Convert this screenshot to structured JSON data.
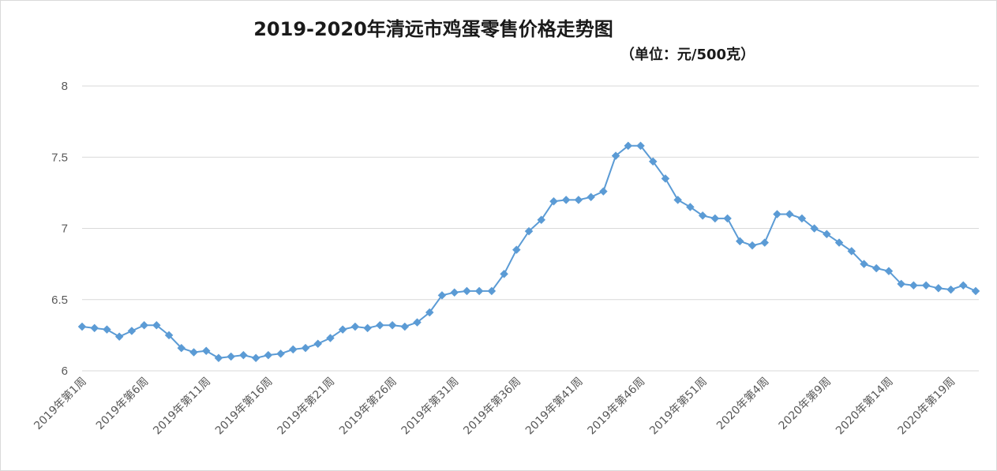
{
  "chart_data": {
    "type": "line",
    "title": "2019-2020年清远市鸡蛋零售价格走势图",
    "subtitle": "（单位：元/500克）",
    "xlabel": "",
    "ylabel": "",
    "ylim": [
      6,
      8
    ],
    "yticks": [
      "6",
      "6.5",
      "7",
      "7.5",
      "8"
    ],
    "grid": true,
    "legend": "none",
    "colors": {
      "series": "#5b9bd5",
      "grid": "#d9d9d9",
      "text": "#595959"
    },
    "x": [
      "2019年第1周",
      "2019年第2周",
      "2019年第3周",
      "2019年第4周",
      "2019年第5周",
      "2019年第6周",
      "2019年第7周",
      "2019年第8周",
      "2019年第9周",
      "2019年第10周",
      "2019年第11周",
      "2019年第12周",
      "2019年第13周",
      "2019年第14周",
      "2019年第15周",
      "2019年第16周",
      "2019年第17周",
      "2019年第18周",
      "2019年第19周",
      "2019年第20周",
      "2019年第21周",
      "2019年第22周",
      "2019年第23周",
      "2019年第24周",
      "2019年第25周",
      "2019年第26周",
      "2019年第27周",
      "2019年第28周",
      "2019年第29周",
      "2019年第30周",
      "2019年第31周",
      "2019年第32周",
      "2019年第33周",
      "2019年第34周",
      "2019年第35周",
      "2019年第36周",
      "2019年第37周",
      "2019年第38周",
      "2019年第39周",
      "2019年第40周",
      "2019年第41周",
      "2019年第42周",
      "2019年第43周",
      "2019年第44周",
      "2019年第45周",
      "2019年第46周",
      "2019年第47周",
      "2019年第48周",
      "2019年第49周",
      "2019年第50周",
      "2019年第51周",
      "2019年第52周",
      "2020年第1周",
      "2020年第2周",
      "2020年第3周",
      "2020年第4周",
      "2020年第5周",
      "2020年第6周",
      "2020年第7周",
      "2020年第8周",
      "2020年第9周",
      "2020年第10周",
      "2020年第11周",
      "2020年第12周",
      "2020年第13周",
      "2020年第14周",
      "2020年第15周",
      "2020年第16周",
      "2020年第17周",
      "2020年第18周",
      "2020年第19周",
      "2020年第20周",
      "2020年第21周"
    ],
    "tick_labels": [
      "2019年第1周",
      "2019年第6周",
      "2019年第11周",
      "2019年第16周",
      "2019年第21周",
      "2019年第26周",
      "2019年第31周",
      "2019年第36周",
      "2019年第41周",
      "2019年第46周",
      "2019年第51周",
      "2020年第4周",
      "2020年第9周",
      "2020年第14周",
      "2020年第19周"
    ],
    "series": [
      {
        "values": [
          6.31,
          6.3,
          6.29,
          6.24,
          6.28,
          6.32,
          6.32,
          6.25,
          6.16,
          6.13,
          6.14,
          6.09,
          6.1,
          6.11,
          6.09,
          6.11,
          6.12,
          6.15,
          6.16,
          6.19,
          6.23,
          6.29,
          6.31,
          6.3,
          6.32,
          6.32,
          6.31,
          6.34,
          6.41,
          6.53,
          6.55,
          6.56,
          6.56,
          6.56,
          6.68,
          6.85,
          6.98,
          7.06,
          7.19,
          7.2,
          7.2,
          7.22,
          7.26,
          7.51,
          7.58,
          7.58,
          7.47,
          7.35,
          7.2,
          7.15,
          7.09,
          7.07,
          7.07,
          6.91,
          6.88,
          6.9,
          7.1,
          7.1,
          7.07,
          7.0,
          6.96,
          6.9,
          6.84,
          6.75,
          6.72,
          6.7,
          6.61,
          6.6,
          6.6,
          6.58,
          6.57,
          6.6,
          6.56
        ]
      }
    ]
  }
}
